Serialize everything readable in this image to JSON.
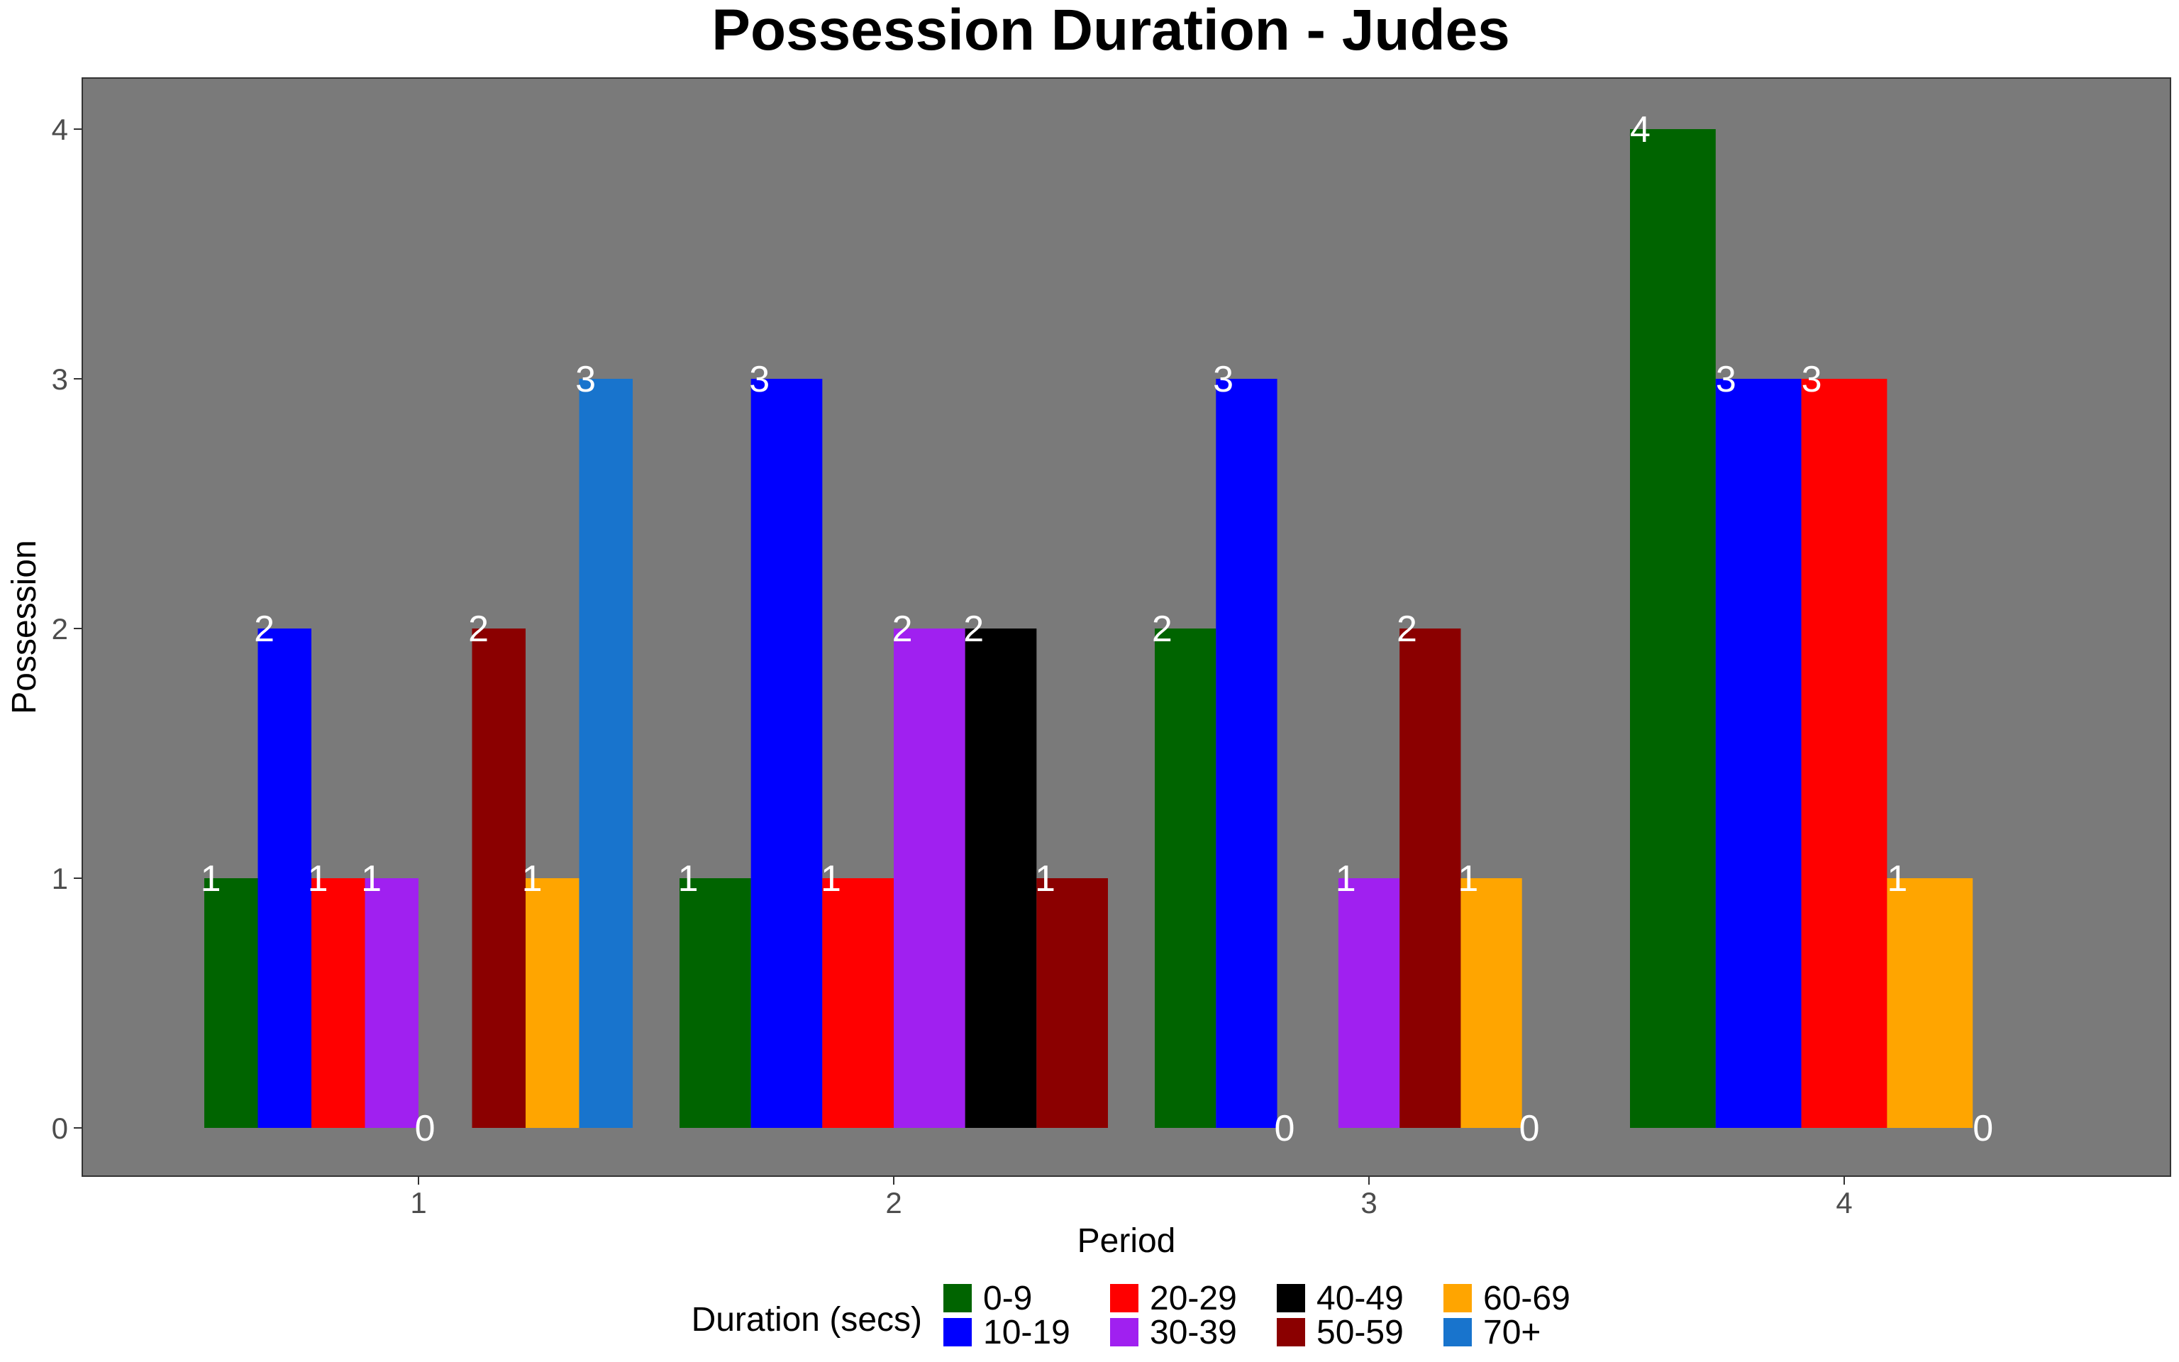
{
  "chart_data": {
    "type": "bar",
    "title": "Possession Duration - Judes",
    "xlabel": "Period",
    "ylabel": "Possession",
    "ylim": [
      0,
      4
    ],
    "y_ticks": [
      "0",
      "1",
      "2",
      "3",
      "4"
    ],
    "categories": [
      "1",
      "2",
      "3",
      "4"
    ],
    "legend_title": "Duration (secs)",
    "legend_position": "bottom",
    "grid": false,
    "panel_background": "#7a7a7a",
    "series": [
      {
        "name": "0-9",
        "color": "#006400"
      },
      {
        "name": "10-19",
        "color": "#0000ff"
      },
      {
        "name": "20-29",
        "color": "#ff0000"
      },
      {
        "name": "30-39",
        "color": "#a020f0"
      },
      {
        "name": "40-49",
        "color": "#000000"
      },
      {
        "name": "50-59",
        "color": "#8b0000"
      },
      {
        "name": "60-69",
        "color": "#ffa500"
      },
      {
        "name": "70+",
        "color": "#1874cd"
      }
    ],
    "groups": [
      {
        "period": "1",
        "bars": [
          {
            "series": "0-9",
            "value": 1
          },
          {
            "series": "10-19",
            "value": 2
          },
          {
            "series": "20-29",
            "value": 1
          },
          {
            "series": "30-39",
            "value": 1
          },
          {
            "series": "40-49",
            "value": 0
          },
          {
            "series": "50-59",
            "value": 2
          },
          {
            "series": "60-69",
            "value": 1
          },
          {
            "series": "70+",
            "value": 3
          }
        ]
      },
      {
        "period": "2",
        "bars": [
          {
            "series": "0-9",
            "value": 1
          },
          {
            "series": "10-19",
            "value": 3
          },
          {
            "series": "20-29",
            "value": 1
          },
          {
            "series": "30-39",
            "value": 2
          },
          {
            "series": "40-49",
            "value": 2
          },
          {
            "series": "50-59",
            "value": 1
          }
        ]
      },
      {
        "period": "3",
        "bars": [
          {
            "series": "0-9",
            "value": 2
          },
          {
            "series": "10-19",
            "value": 3
          },
          {
            "series": "20-29",
            "value": 0
          },
          {
            "series": "30-39",
            "value": 1
          },
          {
            "series": "50-59",
            "value": 2
          },
          {
            "series": "60-69",
            "value": 1
          },
          {
            "series": "70+",
            "value": 0
          }
        ]
      },
      {
        "period": "4",
        "bars": [
          {
            "series": "0-9",
            "value": 4
          },
          {
            "series": "10-19",
            "value": 3
          },
          {
            "series": "20-29",
            "value": 3
          },
          {
            "series": "60-69",
            "value": 1
          },
          {
            "series": "70+",
            "value": 0
          }
        ]
      }
    ]
  }
}
